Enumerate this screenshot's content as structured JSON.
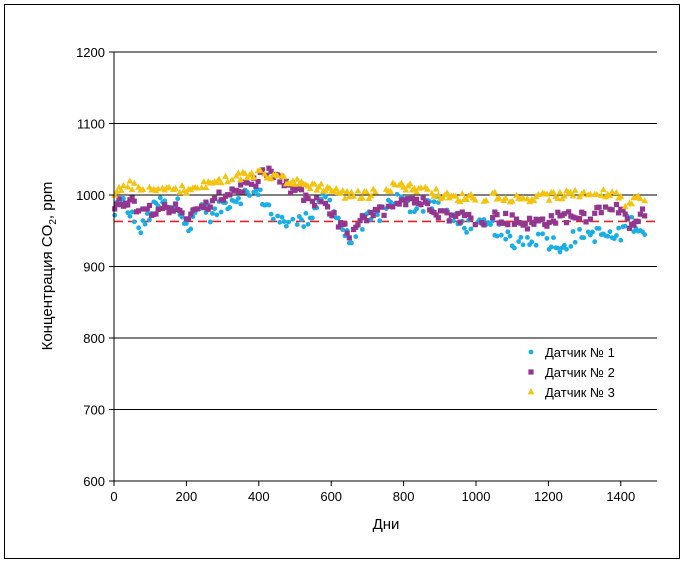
{
  "chart_data": {
    "type": "scatter",
    "title": "",
    "xlabel": "Дни",
    "ylabel": {
      "pre": "Концентрация CO",
      "sub": "2",
      "post": ", ppm"
    },
    "xlim": [
      0,
      1500
    ],
    "ylim": [
      600,
      1200
    ],
    "x_ticks": [
      0,
      200,
      400,
      600,
      800,
      1000,
      1200,
      1400
    ],
    "y_ticks": [
      600,
      700,
      800,
      900,
      1000,
      1100,
      1200
    ],
    "grid": "horizontal",
    "legend_position": "right",
    "reference_line": {
      "y": 963,
      "color": "#e8202a",
      "style": "dashed"
    },
    "series": [
      {
        "name": "Датчик № 1",
        "marker": "circle",
        "color": "#19aee6",
        "keypoints": [
          [
            0,
            975
          ],
          [
            30,
            990
          ],
          [
            50,
            970
          ],
          [
            60,
            945
          ],
          [
            80,
            955
          ],
          [
            100,
            975
          ],
          [
            130,
            990
          ],
          [
            150,
            985
          ],
          [
            180,
            985
          ],
          [
            200,
            965
          ],
          [
            210,
            950
          ],
          [
            230,
            980
          ],
          [
            250,
            985
          ],
          [
            270,
            970
          ],
          [
            300,
            985
          ],
          [
            330,
            995
          ],
          [
            360,
            1000
          ],
          [
            380,
            1005
          ],
          [
            400,
            1000
          ],
          [
            420,
            990
          ],
          [
            450,
            960
          ],
          [
            480,
            965
          ],
          [
            500,
            970
          ],
          [
            520,
            960
          ],
          [
            550,
            975
          ],
          [
            570,
            1000
          ],
          [
            600,
            985
          ],
          [
            620,
            965
          ],
          [
            650,
            935
          ],
          [
            680,
            950
          ],
          [
            700,
            965
          ],
          [
            730,
            970
          ],
          [
            750,
            985
          ],
          [
            780,
            995
          ],
          [
            800,
            990
          ],
          [
            830,
            980
          ],
          [
            860,
            985
          ],
          [
            880,
            990
          ],
          [
            900,
            1000
          ],
          [
            910,
            975
          ],
          [
            930,
            970
          ],
          [
            950,
            960
          ],
          [
            1000,
            955
          ],
          [
            1050,
            955
          ],
          [
            1080,
            940
          ],
          [
            1100,
            935
          ],
          [
            1150,
            940
          ],
          [
            1200,
            935
          ],
          [
            1240,
            930
          ],
          [
            1270,
            940
          ],
          [
            1300,
            945
          ],
          [
            1350,
            945
          ],
          [
            1380,
            940
          ],
          [
            1400,
            945
          ],
          [
            1420,
            965
          ],
          [
            1450,
            955
          ],
          [
            1470,
            945
          ]
        ]
      },
      {
        "name": "Датчик № 2",
        "marker": "square",
        "color": "#93368f",
        "keypoints": [
          [
            0,
            980
          ],
          [
            20,
            990
          ],
          [
            40,
            995
          ],
          [
            60,
            985
          ],
          [
            100,
            980
          ],
          [
            140,
            985
          ],
          [
            170,
            980
          ],
          [
            200,
            970
          ],
          [
            230,
            975
          ],
          [
            260,
            985
          ],
          [
            290,
            995
          ],
          [
            320,
            1005
          ],
          [
            350,
            1010
          ],
          [
            380,
            1015
          ],
          [
            400,
            1020
          ],
          [
            420,
            1035
          ],
          [
            450,
            1025
          ],
          [
            480,
            1010
          ],
          [
            510,
            1005
          ],
          [
            540,
            995
          ],
          [
            570,
            985
          ],
          [
            600,
            975
          ],
          [
            620,
            960
          ],
          [
            640,
            950
          ],
          [
            660,
            945
          ],
          [
            680,
            960
          ],
          [
            700,
            970
          ],
          [
            730,
            975
          ],
          [
            760,
            985
          ],
          [
            790,
            995
          ],
          [
            820,
            995
          ],
          [
            850,
            990
          ],
          [
            880,
            985
          ],
          [
            900,
            975
          ],
          [
            930,
            970
          ],
          [
            970,
            970
          ],
          [
            1000,
            965
          ],
          [
            1050,
            970
          ],
          [
            1100,
            965
          ],
          [
            1150,
            960
          ],
          [
            1200,
            965
          ],
          [
            1250,
            970
          ],
          [
            1280,
            975
          ],
          [
            1310,
            970
          ],
          [
            1340,
            980
          ],
          [
            1370,
            985
          ],
          [
            1380,
            990
          ],
          [
            1400,
            975
          ],
          [
            1420,
            960
          ],
          [
            1450,
            970
          ],
          [
            1470,
            975
          ]
        ]
      },
      {
        "name": "Датчик № 3",
        "marker": "triangle",
        "color": "#f3c30f",
        "keypoints": [
          [
            0,
            1000
          ],
          [
            20,
            1010
          ],
          [
            40,
            1015
          ],
          [
            60,
            1010
          ],
          [
            100,
            1005
          ],
          [
            140,
            1008
          ],
          [
            180,
            1010
          ],
          [
            200,
            1005
          ],
          [
            230,
            1010
          ],
          [
            260,
            1015
          ],
          [
            300,
            1020
          ],
          [
            340,
            1025
          ],
          [
            370,
            1028
          ],
          [
            400,
            1030
          ],
          [
            420,
            1030
          ],
          [
            450,
            1025
          ],
          [
            480,
            1020
          ],
          [
            520,
            1015
          ],
          [
            560,
            1012
          ],
          [
            600,
            1008
          ],
          [
            640,
            1000
          ],
          [
            680,
            1000
          ],
          [
            700,
            1000
          ],
          [
            730,
            1005
          ],
          [
            760,
            1010
          ],
          [
            790,
            1015
          ],
          [
            820,
            1010
          ],
          [
            850,
            1008
          ],
          [
            880,
            1005
          ],
          [
            900,
            1000
          ],
          [
            940,
            995
          ],
          [
            980,
            998
          ],
          [
            1020,
            995
          ],
          [
            1060,
            1000
          ],
          [
            1100,
            995
          ],
          [
            1150,
            995
          ],
          [
            1200,
            998
          ],
          [
            1250,
            1000
          ],
          [
            1300,
            1002
          ],
          [
            1350,
            1002
          ],
          [
            1380,
            1000
          ],
          [
            1400,
            995
          ],
          [
            1420,
            985
          ],
          [
            1450,
            995
          ],
          [
            1470,
            995
          ]
        ]
      }
    ]
  }
}
